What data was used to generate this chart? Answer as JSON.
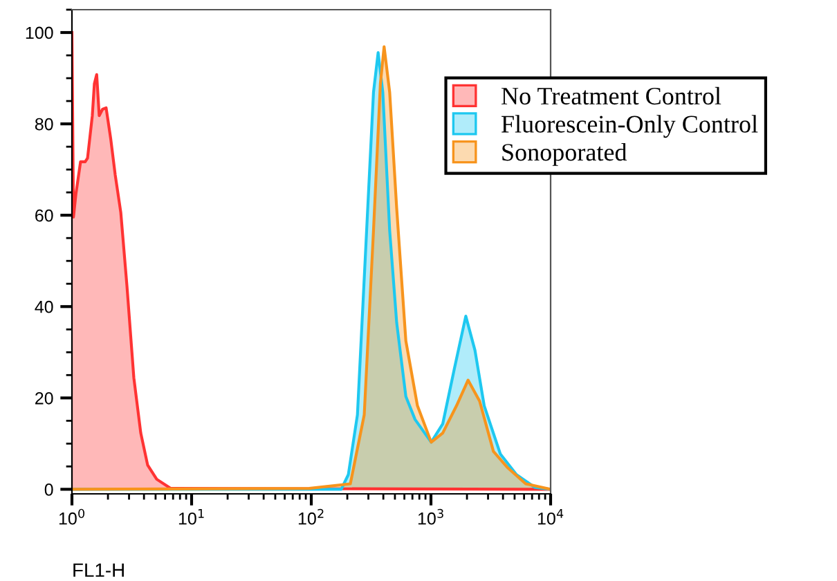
{
  "chart_data": {
    "type": "area",
    "xlabel": "FL1-H",
    "log": "x",
    "xlim": [
      1,
      10000
    ],
    "xticks": [
      {
        "value": 1,
        "label": "10$^{0}$"
      },
      {
        "value": 10,
        "label": "10$^{1}$"
      },
      {
        "value": 100,
        "label": "10$^{2}$"
      },
      {
        "value": 1000,
        "label": "10$^{3}$"
      },
      {
        "value": 10000,
        "label": "10$^{4}$"
      }
    ],
    "ylim": [
      -1,
      105
    ],
    "yticks": [
      0,
      20,
      40,
      60,
      80,
      100
    ],
    "grid": false,
    "legend": "top right",
    "series": [
      {
        "name": "No Treatment Control",
        "color": "#ff3333",
        "x": [
          1.0,
          1.03,
          1.08,
          1.18,
          1.29,
          1.35,
          1.48,
          1.54,
          1.61,
          1.69,
          1.8,
          1.93,
          2.11,
          2.3,
          2.56,
          2.88,
          3.29,
          3.76,
          4.29,
          5.11,
          6.67,
          10000
        ],
        "values": [
          100,
          59.6,
          64.7,
          71.7,
          71.7,
          72.5,
          81.8,
          88.8,
          90.8,
          81.8,
          83.2,
          83.5,
          76.7,
          68.8,
          60.6,
          44.6,
          24.4,
          12.3,
          5.3,
          2.2,
          0.2,
          0
        ]
      },
      {
        "name": "Fluorescein-Only Control",
        "color": "#1ec8f0",
        "x": [
          1.0,
          178,
          204,
          243,
          290,
          331,
          362,
          396,
          452,
          517,
          617,
          736,
          1005,
          1254,
          1566,
          1955,
          2333,
          2786,
          3805,
          5186,
          7396,
          10000
        ],
        "values": [
          0,
          0,
          3.2,
          16.3,
          56.6,
          86.9,
          95.6,
          86.9,
          56.6,
          36.5,
          20.3,
          15.3,
          10.3,
          14.3,
          26.3,
          37.9,
          30.4,
          18.3,
          7.7,
          3.2,
          0.4,
          0
        ]
      },
      {
        "name": "Sonoporated",
        "color": "#f7941d",
        "x": [
          1.0,
          96,
          212,
          277,
          331,
          378,
          406,
          452,
          517,
          617,
          771,
          1005,
          1254,
          1636,
          2042,
          2552,
          3327,
          4345,
          6194,
          10000
        ],
        "values": [
          0,
          0.2,
          1.2,
          16.3,
          56.6,
          88.8,
          96.9,
          86.9,
          61.6,
          32.5,
          18.3,
          10.3,
          12.3,
          18.3,
          23.9,
          19.3,
          8.3,
          4.8,
          1.2,
          0
        ]
      }
    ]
  }
}
